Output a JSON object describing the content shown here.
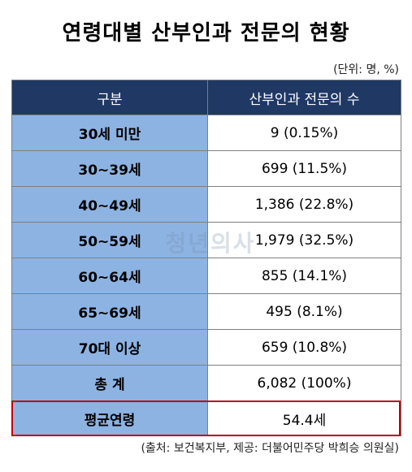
{
  "title": "연령대별 산부인과 전문의 현황",
  "unit_note": "(단위: 명, %)",
  "table": {
    "headers": [
      "구분",
      "산부인과 전문의 수"
    ],
    "rows": [
      {
        "label": "30세 미만",
        "value": "9 (0.15%)"
      },
      {
        "label": "30~39세",
        "value": "699 (11.5%)"
      },
      {
        "label": "40~49세",
        "value": "1,386 (22.8%)"
      },
      {
        "label": "50~59세",
        "value": "1,979 (32.5%)"
      },
      {
        "label": "60~64세",
        "value": "855 (14.1%)"
      },
      {
        "label": "65~69세",
        "value": "495 (8.1%)"
      },
      {
        "label": "70대 이상",
        "value": "659 (10.8%)"
      },
      {
        "label": "총 계",
        "value": "6,082 (100%)"
      },
      {
        "label": "평균연령",
        "value": "54.4세"
      }
    ]
  },
  "watermark": "청년의사",
  "source": "(출처: 보건복지부, 제공: 더불어민주당 박희승 의원실)",
  "colors": {
    "header_bg": "#1f3864",
    "label_bg": "#8db3e2",
    "highlight_border": "#c00000"
  }
}
